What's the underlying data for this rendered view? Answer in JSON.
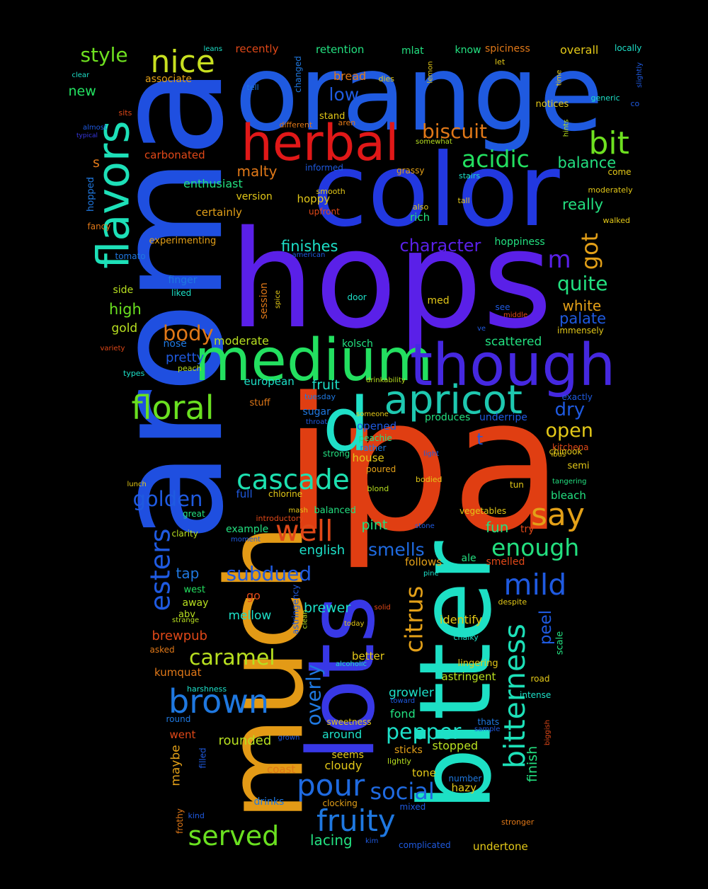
{
  "words": [
    {
      "text": "ipa",
      "color": "#e03e12"
    },
    {
      "text": "aroma",
      "color": "#1f4fe0"
    },
    {
      "text": "hops",
      "color": "#5a20e8"
    },
    {
      "text": "orange",
      "color": "#1f5ae0"
    },
    {
      "text": "color",
      "color": "#2238e0"
    },
    {
      "text": "much",
      "color": "#e39a16"
    },
    {
      "text": "bitter",
      "color": "#1de0c5"
    },
    {
      "text": "lots",
      "color": "#3838e6"
    },
    {
      "text": "medium",
      "color": "#23e060"
    },
    {
      "text": "though",
      "color": "#4528e0"
    },
    {
      "text": "d",
      "color": "#1fe0c8"
    },
    {
      "text": "apricot",
      "color": "#1ec8b0"
    },
    {
      "text": "herbal",
      "color": "#e01818"
    },
    {
      "text": "flavors",
      "color": "#1de0b8"
    },
    {
      "text": "floral",
      "color": "#6ae020"
    },
    {
      "text": "nice",
      "color": "#c8e020"
    },
    {
      "text": "bit",
      "color": "#6ee020"
    },
    {
      "text": "acidic",
      "color": "#23e060"
    },
    {
      "text": "biscuit",
      "color": "#e07818"
    },
    {
      "text": "style",
      "color": "#6ee020"
    },
    {
      "text": "cascade",
      "color": "#1de0b0"
    },
    {
      "text": "well",
      "color": "#e04818"
    },
    {
      "text": "esters",
      "color": "#1f5ae0"
    },
    {
      "text": "say",
      "color": "#e3a018"
    },
    {
      "text": "brown",
      "color": "#1f78e0"
    },
    {
      "text": "fruity",
      "color": "#1f78e0"
    },
    {
      "text": "pour",
      "color": "#1f6ae0"
    },
    {
      "text": "served",
      "color": "#6ae020"
    },
    {
      "text": "citrus",
      "color": "#e3a018"
    },
    {
      "text": "bitterness",
      "color": "#1de0b8"
    },
    {
      "text": "mild",
      "color": "#1f5ae0"
    },
    {
      "text": "enough",
      "color": "#23e080"
    },
    {
      "text": "caramel",
      "color": "#b8e020"
    },
    {
      "text": "subdued",
      "color": "#1f5ae0"
    },
    {
      "text": "social",
      "color": "#1f6ae0"
    },
    {
      "text": "pepper",
      "color": "#1de0c8"
    },
    {
      "text": "overly",
      "color": "#1f78e0"
    },
    {
      "text": "golden",
      "color": "#1f5ae0"
    },
    {
      "text": "body",
      "color": "#e07818"
    },
    {
      "text": "open",
      "color": "#e3c818"
    },
    {
      "text": "character",
      "color": "#5a20e8"
    },
    {
      "text": "got",
      "color": "#e3a018"
    },
    {
      "text": "m",
      "color": "#5a20e8"
    },
    {
      "text": "quite",
      "color": "#23e080"
    },
    {
      "text": "dry",
      "color": "#1f5ae0"
    },
    {
      "text": "low",
      "color": "#1f5ae0"
    },
    {
      "text": "really",
      "color": "#23e080"
    },
    {
      "text": "balance",
      "color": "#23e080"
    },
    {
      "text": "peel",
      "color": "#1f5ae0"
    },
    {
      "text": "finish",
      "color": "#23e080"
    },
    {
      "text": "finishes",
      "color": "#1de0c8"
    },
    {
      "text": "malty",
      "color": "#e07818"
    },
    {
      "text": "smells",
      "color": "#1f6ae0"
    },
    {
      "text": "fun",
      "color": "#23e080"
    },
    {
      "text": "palate",
      "color": "#1f5ae0"
    },
    {
      "text": "white",
      "color": "#e3a018"
    },
    {
      "text": "t",
      "color": "#1f5ae0"
    },
    {
      "text": "pint",
      "color": "#23e080"
    },
    {
      "text": "scattered",
      "color": "#23e080"
    },
    {
      "text": "high",
      "color": "#6ae020"
    },
    {
      "text": "new",
      "color": "#23e060"
    },
    {
      "text": "s",
      "color": "#e07818"
    },
    {
      "text": "tap",
      "color": "#1f78e0"
    },
    {
      "text": "pretty",
      "color": "#1f5ae0"
    },
    {
      "text": "brewer",
      "color": "#1de0c8"
    },
    {
      "text": "moderate",
      "color": "#b8e020"
    },
    {
      "text": "english",
      "color": "#1de0c8"
    },
    {
      "text": "fruit",
      "color": "#1de0c8"
    },
    {
      "text": "rounded",
      "color": "#b8e020"
    },
    {
      "text": "cloudy",
      "color": "#e3c818"
    },
    {
      "text": "identify",
      "color": "#e3c818"
    },
    {
      "text": "astringent",
      "color": "#b8e020"
    },
    {
      "text": "growler",
      "color": "#1de0c8"
    },
    {
      "text": "stopped",
      "color": "#b8e020"
    },
    {
      "text": "lacing",
      "color": "#23e080"
    },
    {
      "text": "undertone",
      "color": "#e3c818"
    },
    {
      "text": "brewpub",
      "color": "#e04818"
    },
    {
      "text": "mellow",
      "color": "#1de0c8"
    },
    {
      "text": "european",
      "color": "#1de0c8"
    },
    {
      "text": "recently",
      "color": "#e04818"
    },
    {
      "text": "retention",
      "color": "#23e080"
    },
    {
      "text": "mlat",
      "color": "#23e080"
    },
    {
      "text": "know",
      "color": "#23e080"
    },
    {
      "text": "spiciness",
      "color": "#e07818"
    },
    {
      "text": "overall",
      "color": "#e3c818"
    },
    {
      "text": "locally",
      "color": "#1de0c8"
    },
    {
      "text": "bread",
      "color": "#e07818"
    },
    {
      "text": "associate",
      "color": "#e3a018"
    },
    {
      "text": "carbonated",
      "color": "#e04818"
    },
    {
      "text": "enthusiast",
      "color": "#23e080"
    },
    {
      "text": "version",
      "color": "#e3c818"
    },
    {
      "text": "certainly",
      "color": "#e3a018"
    },
    {
      "text": "hoppy",
      "color": "#e3c818"
    },
    {
      "text": "rich",
      "color": "#23e080"
    },
    {
      "text": "hoppiness",
      "color": "#23e080"
    },
    {
      "text": "experimenting",
      "color": "#e3a018"
    },
    {
      "text": "side",
      "color": "#b8e020"
    },
    {
      "text": "finger",
      "color": "#1f78e0"
    },
    {
      "text": "gold",
      "color": "#b8e020"
    },
    {
      "text": "nose",
      "color": "#1f78e0"
    },
    {
      "text": "session",
      "color": "#e07818"
    },
    {
      "text": "kolsch",
      "color": "#23e080"
    },
    {
      "text": "stuff",
      "color": "#e07818"
    },
    {
      "text": "sugar",
      "color": "#1f78e0"
    },
    {
      "text": "produces",
      "color": "#23e080"
    },
    {
      "text": "underripe",
      "color": "#1f5ae0"
    },
    {
      "text": "peachie",
      "color": "#23e080"
    },
    {
      "text": "opened",
      "color": "#1f5ae0"
    },
    {
      "text": "strong",
      "color": "#23e080"
    },
    {
      "text": "house",
      "color": "#e3c818"
    },
    {
      "text": "semi",
      "color": "#e3c818"
    },
    {
      "text": "bleach",
      "color": "#23e080"
    },
    {
      "text": "full",
      "color": "#1f5ae0"
    },
    {
      "text": "chlorine",
      "color": "#e3c818"
    },
    {
      "text": "example",
      "color": "#23e080"
    },
    {
      "text": "great",
      "color": "#23e080"
    },
    {
      "text": "clarity",
      "color": "#b8e020"
    },
    {
      "text": "try",
      "color": "#e04818"
    },
    {
      "text": "ale",
      "color": "#23e080"
    },
    {
      "text": "follows",
      "color": "#e3a018"
    },
    {
      "text": "smelled",
      "color": "#e04818"
    },
    {
      "text": "go",
      "color": "#e04818"
    },
    {
      "text": "west",
      "color": "#23e060"
    },
    {
      "text": "away",
      "color": "#b8e020"
    },
    {
      "text": "abv",
      "color": "#b8e020"
    },
    {
      "text": "asked",
      "color": "#e07818"
    },
    {
      "text": "kumquat",
      "color": "#e07818"
    },
    {
      "text": "better",
      "color": "#e3c818"
    },
    {
      "text": "lingering",
      "color": "#e3c818"
    },
    {
      "text": "scale",
      "color": "#23e080"
    },
    {
      "text": "intense",
      "color": "#1de0c8"
    },
    {
      "text": "fond",
      "color": "#23e080"
    },
    {
      "text": "around",
      "color": "#1de0c8"
    },
    {
      "text": "sweetness",
      "color": "#e3c818"
    },
    {
      "text": "seems",
      "color": "#e3c818"
    },
    {
      "text": "thats",
      "color": "#1f78e0"
    },
    {
      "text": "maybe",
      "color": "#e3a018"
    },
    {
      "text": "went",
      "color": "#e04818"
    },
    {
      "text": "filled",
      "color": "#1f5ae0"
    },
    {
      "text": "coast",
      "color": "#e07818"
    },
    {
      "text": "tone",
      "color": "#e3c818"
    },
    {
      "text": "hazy",
      "color": "#e3c818"
    },
    {
      "text": "number",
      "color": "#1f78e0"
    },
    {
      "text": "drinks",
      "color": "#1f78e0"
    },
    {
      "text": "clocking",
      "color": "#e3a018"
    },
    {
      "text": "mixed",
      "color": "#1f5ae0"
    },
    {
      "text": "complicated",
      "color": "#1f5ae0"
    },
    {
      "text": "tall",
      "color": "#e3c818"
    },
    {
      "text": "grassy",
      "color": "#e3a018"
    },
    {
      "text": "stand",
      "color": "#e3c818"
    },
    {
      "text": "informed",
      "color": "#1f5ae0"
    },
    {
      "text": "smooth",
      "color": "#e3c818"
    },
    {
      "text": "upfront",
      "color": "#e04818"
    },
    {
      "text": "also",
      "color": "#e3c818"
    },
    {
      "text": "med",
      "color": "#e3c818"
    },
    {
      "text": "door",
      "color": "#1de0c8"
    },
    {
      "text": "see",
      "color": "#1f5ae0"
    },
    {
      "text": "middle",
      "color": "#e04818"
    },
    {
      "text": "immensely",
      "color": "#e3c818"
    },
    {
      "text": "exactly",
      "color": "#1f5ae0"
    },
    {
      "text": "kitchena",
      "color": "#e04818"
    },
    {
      "text": "chinook",
      "color": "#e3c818"
    },
    {
      "text": "ibus",
      "color": "#e3c818"
    },
    {
      "text": "tangering",
      "color": "#23e080"
    },
    {
      "text": "tun",
      "color": "#e3c818"
    },
    {
      "text": "vegetables",
      "color": "#e3c818"
    },
    {
      "text": "bodied",
      "color": "#e3c818"
    },
    {
      "text": "blond",
      "color": "#b8e020"
    },
    {
      "text": "poured",
      "color": "#e3a018"
    },
    {
      "text": "light",
      "color": "#1f5ae0"
    },
    {
      "text": "rather",
      "color": "#1f78e0"
    },
    {
      "text": "someone",
      "color": "#e3c818"
    },
    {
      "text": "drinkability",
      "color": "#b8e020"
    },
    {
      "text": "tuesday",
      "color": "#1f78e0"
    },
    {
      "text": "throat",
      "color": "#1f5ae0"
    },
    {
      "text": "balanced",
      "color": "#23e080"
    },
    {
      "text": "mash",
      "color": "#e3c818"
    },
    {
      "text": "introductory",
      "color": "#e04818"
    },
    {
      "text": "moment",
      "color": "#1f5ae0"
    },
    {
      "text": "stone",
      "color": "#1f5ae0"
    },
    {
      "text": "pine",
      "color": "#1de0c8"
    },
    {
      "text": "despite",
      "color": "#e3c818"
    },
    {
      "text": "solid",
      "color": "#e04818"
    },
    {
      "text": "today",
      "color": "#e3c818"
    },
    {
      "text": "chalky",
      "color": "#1de0c8"
    },
    {
      "text": "alcoholic",
      "color": "#1de0c8"
    },
    {
      "text": "road",
      "color": "#e3c818"
    },
    {
      "text": "toward",
      "color": "#1f5ae0"
    },
    {
      "text": "sample",
      "color": "#1f5ae0"
    },
    {
      "text": "biggish",
      "color": "#e04818"
    },
    {
      "text": "sticks",
      "color": "#e3a018"
    },
    {
      "text": "lightly",
      "color": "#b8e020"
    },
    {
      "text": "grown",
      "color": "#1f5ae0"
    },
    {
      "text": "kim",
      "color": "#1f5ae0"
    },
    {
      "text": "stronger",
      "color": "#e07818"
    },
    {
      "text": "frothy",
      "color": "#e07818"
    },
    {
      "text": "kind",
      "color": "#1f5ae0"
    },
    {
      "text": "round",
      "color": "#1f78e0"
    },
    {
      "text": "harshness",
      "color": "#1de0c8"
    },
    {
      "text": "strange",
      "color": "#b8e020"
    },
    {
      "text": "astringency",
      "color": "#1f5ae0"
    },
    {
      "text": "clean",
      "color": "#b8e020"
    },
    {
      "text": "leans",
      "color": "#1de0c8"
    },
    {
      "text": "clear",
      "color": "#1de0c8"
    },
    {
      "text": "tell",
      "color": "#1f78e0"
    },
    {
      "text": "changed",
      "color": "#1f78e0"
    },
    {
      "text": "dies",
      "color": "#e3c818"
    },
    {
      "text": "lemon",
      "color": "#e3c818"
    },
    {
      "text": "let",
      "color": "#e3c818"
    },
    {
      "text": "time",
      "color": "#e3c818"
    },
    {
      "text": "slightly",
      "color": "#1f5ae0"
    },
    {
      "text": "generic",
      "color": "#1de0c8"
    },
    {
      "text": "co",
      "color": "#1f5ae0"
    },
    {
      "text": "notices",
      "color": "#e3c818"
    },
    {
      "text": "hints",
      "color": "#b8e020"
    },
    {
      "text": "sits",
      "color": "#e04818"
    },
    {
      "text": "almost",
      "color": "#1f5ae0"
    },
    {
      "text": "typical",
      "color": "#3838e6"
    },
    {
      "text": "different",
      "color": "#e07818"
    },
    {
      "text": "aren",
      "color": "#e07818"
    },
    {
      "text": "somewhat",
      "color": "#b8e020"
    },
    {
      "text": "stairs",
      "color": "#1de0c8"
    },
    {
      "text": "come",
      "color": "#e3c818"
    },
    {
      "text": "moderately",
      "color": "#e3c818"
    },
    {
      "text": "walked",
      "color": "#e3c818"
    },
    {
      "text": "hopped",
      "color": "#1f78e0"
    },
    {
      "text": "fancy",
      "color": "#e07818"
    },
    {
      "text": "tomato",
      "color": "#1f78e0"
    },
    {
      "text": "american",
      "color": "#1f5ae0"
    },
    {
      "text": "liked",
      "color": "#1de0c8"
    },
    {
      "text": "spice",
      "color": "#e3c818"
    },
    {
      "text": "ve",
      "color": "#1f5ae0"
    },
    {
      "text": "variety",
      "color": "#e04818"
    },
    {
      "text": "types",
      "color": "#1de0c8"
    },
    {
      "text": "peach",
      "color": "#b8e020"
    },
    {
      "text": "lunch",
      "color": "#e3c818"
    }
  ]
}
